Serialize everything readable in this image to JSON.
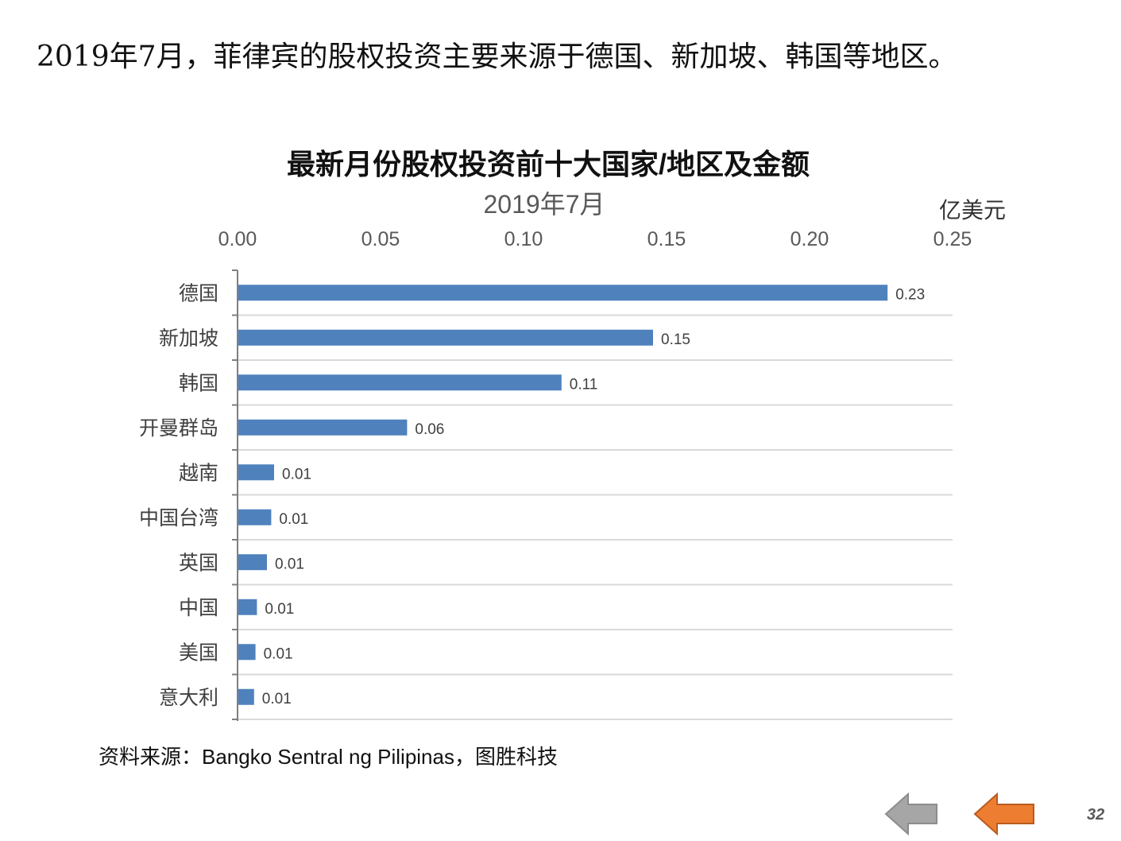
{
  "headline": "2019年7月，菲律宾的股权投资主要来源于德国、新加坡、韩国等地区。",
  "source": "资料来源：Bangko  Sentral ng Pilipinas，图胜科技",
  "page_number": "32",
  "colors": {
    "bar": "#4f81bd",
    "nav_back": "#a6a6a6",
    "nav_forward": "#ed7d31"
  },
  "icons": {
    "back": "arrow-left-icon",
    "forward": "arrow-left-icon"
  },
  "chart_data": {
    "type": "bar",
    "orientation": "horizontal",
    "title": "最新月份股权投资前十大国家/地区及金额",
    "subtitle": "2019年7月",
    "unit": "亿美元",
    "categories": [
      "德国",
      "新加坡",
      "韩国",
      "开曼群岛",
      "越南",
      "中国台湾",
      "英国",
      "中国",
      "美国",
      "意大利"
    ],
    "values": [
      0.227,
      0.145,
      0.113,
      0.059,
      0.0125,
      0.0115,
      0.01,
      0.0065,
      0.006,
      0.0055
    ],
    "data_labels": [
      "0.23",
      "0.15",
      "0.11",
      "0.06",
      "0.01",
      "0.01",
      "0.01",
      "0.01",
      "0.01",
      "0.01"
    ],
    "xlim": [
      0,
      0.25
    ],
    "xticks": [
      "0.00",
      "0.05",
      "0.10",
      "0.15",
      "0.20",
      "0.25"
    ],
    "x_axis_position": "top",
    "grid": "horizontal"
  }
}
